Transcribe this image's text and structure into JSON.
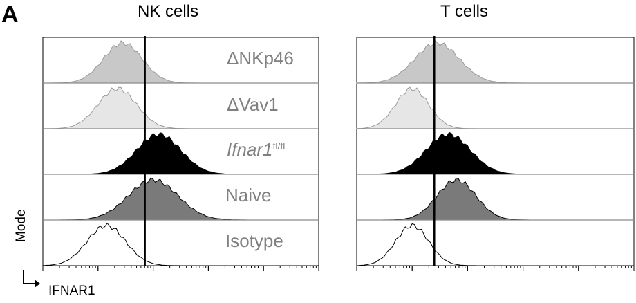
{
  "figure": {
    "panel_letter": "A",
    "panel_titles": [
      "NK cells",
      "T cells"
    ],
    "y_axis_label": "Mode",
    "x_axis_label": "IFNAR1"
  },
  "row_labels": {
    "dnkp46": "ΔNKp46",
    "dvav1": "ΔVav1",
    "ifnar_main": "Ifnar1",
    "ifnar_sup": "fl/fl",
    "naive": "Naive",
    "isotype": "Isotype"
  },
  "colors": {
    "dNKp46": "#c8c8c8",
    "dVav1": "#e6e6e6",
    "Ifnar1 fl/fl": "#000000",
    "Naive": "#7a7a7a",
    "Isotype": "#ffffff",
    "outline": "#000000",
    "row_divider": "#8a8a8a"
  },
  "chart_data": [
    {
      "type": "area",
      "title": "NK cells",
      "xlabel": "IFNAR1",
      "ylabel": "Mode",
      "x_range": [
        0,
        100
      ],
      "gate_x": 37,
      "series": [
        {
          "name": "ΔNKp46",
          "peak_x": 29,
          "width": 7,
          "fill": "#c8c8c8"
        },
        {
          "name": "ΔVav1",
          "peak_x": 27,
          "width": 7,
          "fill": "#e6e6e6"
        },
        {
          "name": "Ifnar1 fl/fl",
          "peak_x": 42,
          "width": 8,
          "fill": "#000000"
        },
        {
          "name": "Naive",
          "peak_x": 40,
          "width": 9,
          "fill": "#7a7a7a"
        },
        {
          "name": "Isotype",
          "peak_x": 23,
          "width": 7,
          "fill": "#ffffff"
        }
      ]
    },
    {
      "type": "area",
      "title": "T cells",
      "xlabel": "IFNAR1",
      "ylabel": "Mode",
      "x_range": [
        0,
        100
      ],
      "gate_x": 28,
      "series": [
        {
          "name": "ΔNKp46",
          "peak_x": 29,
          "width": 8,
          "fill": "#c8c8c8"
        },
        {
          "name": "ΔVav1",
          "peak_x": 20,
          "width": 6,
          "fill": "#e6e6e6"
        },
        {
          "name": "Ifnar1 fl/fl",
          "peak_x": 33,
          "width": 8,
          "fill": "#000000"
        },
        {
          "name": "Naive",
          "peak_x": 36,
          "width": 7,
          "fill": "#7a7a7a"
        },
        {
          "name": "Isotype",
          "peak_x": 20,
          "width": 6,
          "fill": "#ffffff"
        }
      ]
    }
  ]
}
